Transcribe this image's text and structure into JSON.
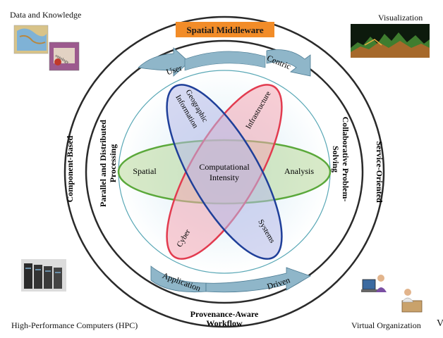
{
  "corners": {
    "top_left": "Data and Knowledge",
    "top_right": "Visualization",
    "bottom_left": "High-Performance Computers (HPC)",
    "bottom_right": "Virtual Organization"
  },
  "middleware_label": "Spatial Middleware",
  "outer_ring": {
    "left": "Component-Based",
    "right": "Service-Oriented"
  },
  "middle_ring": {
    "left_line1": "Parallel and Distributed",
    "left_line2": "Processing",
    "right_line1": "Collaborative Problem-",
    "right_line2": "Solving",
    "bottom_line1": "Provenance-Aware",
    "bottom_line2": "Workflow"
  },
  "arrows": {
    "top_left": "User",
    "top_right": "Centric",
    "bottom_left": "Application",
    "bottom_right": "Driven"
  },
  "ellipses": {
    "horizontal_left": "Spatial",
    "horizontal_right": "Analysis",
    "blue_top_line1": "Geographic",
    "blue_top_line2": "Information",
    "blue_bottom": "Systems",
    "red_top": "Infrastructure",
    "red_bottom": "Cyber"
  },
  "center_line1": "Computational",
  "center_line2": "Intensity",
  "edge_fragment": "V",
  "colors": {
    "blue_ellipse": "#1f3f99",
    "red_ellipse": "#e23b4f",
    "green_ellipse": "#6bb24a",
    "middleware_box": "#f28c28",
    "arrow_fill": "#8fb6c9"
  }
}
